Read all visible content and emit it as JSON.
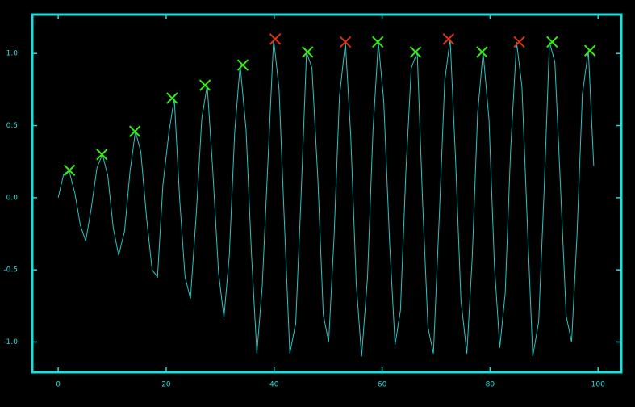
{
  "chart_data": {
    "type": "line",
    "x": [
      0,
      1.0,
      2.0,
      3.1,
      4.1,
      5.1,
      6.1,
      7.2,
      8.2,
      9.2,
      10.2,
      11.2,
      12.3,
      13.3,
      14.3,
      15.3,
      16.4,
      17.4,
      18.4,
      19.4,
      20.5,
      21.5,
      22.5,
      23.5,
      24.5,
      25.6,
      26.6,
      27.6,
      28.6,
      29.7,
      30.7,
      31.7,
      32.7,
      33.7,
      34.8,
      35.8,
      36.8,
      37.8,
      38.9,
      39.9,
      40.9,
      41.9,
      42.9,
      44.0,
      45.0,
      46.0,
      47.0,
      48.1,
      49.1,
      50.1,
      51.1,
      52.1,
      53.2,
      54.2,
      55.2,
      56.2,
      57.3,
      58.3,
      59.3,
      60.3,
      61.4,
      62.4,
      63.4,
      64.4,
      65.4,
      66.5,
      67.5,
      68.5,
      69.5,
      70.6,
      71.6,
      72.6,
      73.6,
      74.6,
      75.7,
      76.7,
      77.7,
      78.7,
      79.8,
      80.8,
      81.8,
      82.8,
      83.8,
      84.9,
      85.9,
      86.9,
      87.9,
      89.0,
      90.0,
      91.0,
      92.0,
      93.0,
      94.1,
      95.1,
      96.1,
      97.1,
      98.2,
      99.2
    ],
    "series": [
      {
        "color": "#2bc4c4",
        "values": [
          0,
          0.16,
          0.19,
          0.03,
          -0.19,
          -0.3,
          -0.08,
          0.21,
          0.3,
          0.15,
          -0.21,
          -0.4,
          -0.23,
          0.18,
          0.46,
          0.32,
          -0.15,
          -0.5,
          -0.55,
          0.09,
          0.45,
          0.69,
          -0.01,
          -0.55,
          -0.7,
          -0.1,
          0.55,
          0.78,
          0.21,
          -0.52,
          -0.83,
          -0.4,
          0.46,
          0.92,
          0.47,
          -0.39,
          -1.08,
          -0.61,
          0.29,
          1.1,
          0.76,
          -0.17,
          -1.08,
          -0.87,
          0.02,
          1.01,
          0.9,
          0.13,
          -0.81,
          -1.0,
          -0.27,
          0.7,
          1.08,
          0.42,
          -0.59,
          -1.1,
          -0.55,
          0.46,
          1.08,
          0.67,
          -0.32,
          -1.02,
          -0.78,
          0.18,
          0.9,
          1.01,
          -0.03,
          -0.9,
          -1.08,
          -0.12,
          0.81,
          1.1,
          0.27,
          -0.71,
          -1.08,
          -0.41,
          0.59,
          1.01,
          0.54,
          -0.47,
          -1.04,
          -0.66,
          0.33,
          1.08,
          0.77,
          -0.18,
          -1.1,
          -0.86,
          0.04,
          1.08,
          0.94,
          0.11,
          -0.82,
          -1.0,
          -0.26,
          0.72,
          1.02,
          0.22
        ]
      }
    ],
    "markers": {
      "x": [
        2.1,
        8.1,
        14.2,
        21.1,
        27.2,
        34.2,
        40.2,
        46.2,
        53.2,
        59.2,
        66.2,
        72.3,
        78.5,
        85.4,
        91.5,
        98.5
      ],
      "values": [
        0.19,
        0.3,
        0.46,
        0.69,
        0.78,
        0.92,
        1.1,
        1.01,
        1.08,
        1.08,
        1.01,
        1.1,
        1.01,
        1.08,
        1.08,
        1.02
      ],
      "colors": [
        "#33ee11",
        "#33ee11",
        "#33ee11",
        "#33ee11",
        "#33ee11",
        "#33ee11",
        "#dd3311",
        "#33ee11",
        "#dd3311",
        "#33ee11",
        "#33ee11",
        "#dd3311",
        "#33ee11",
        "#dd3311",
        "#33ee11",
        "#33ee11"
      ]
    },
    "xlim": [
      -4.8,
      104.3
    ],
    "ylim": [
      -1.21,
      1.27
    ],
    "xticks": [
      0,
      20,
      40,
      60,
      80,
      100
    ],
    "yticks": [
      {
        "value": -1,
        "label": "-1.0"
      },
      -0.5,
      {
        "value": 0,
        "label": "0.0"
      },
      0.5,
      {
        "value": 1,
        "label": "1.0"
      }
    ],
    "axis_color": "#22dddd"
  }
}
